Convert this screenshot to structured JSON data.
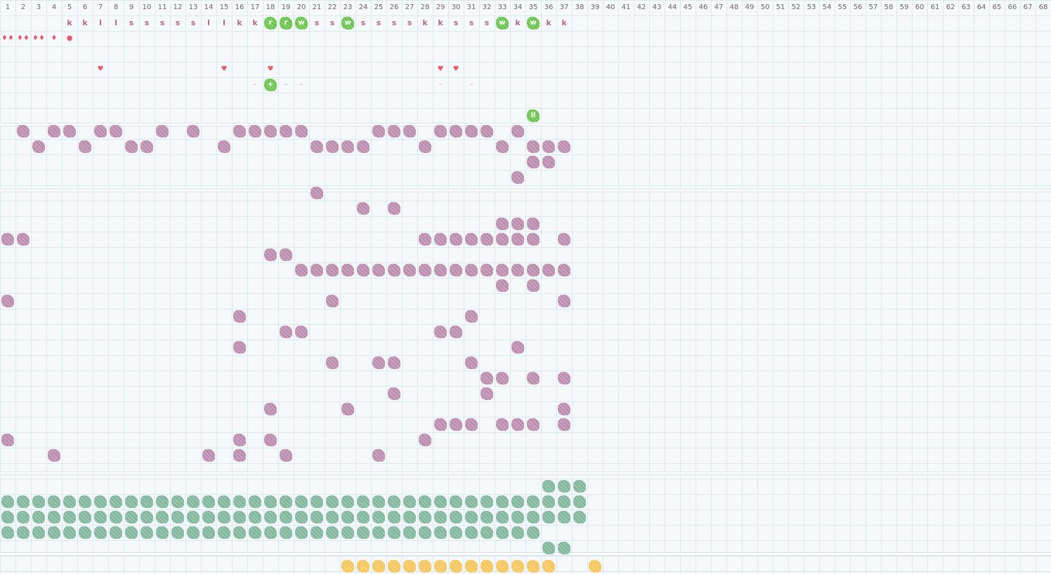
{
  "colors": {
    "grid_line": "#dbe8ee",
    "background": "#f5f9fb",
    "header_text": "#666666",
    "letter_text": "#b06a8e",
    "green_marker": "#66c24a",
    "purple": "#b98aac",
    "teal": "#7fb59a",
    "orange": "#f5c55a",
    "red": "#e35d6a",
    "dash": "#ef9a7a"
  },
  "columns": [
    "1",
    "2",
    "3",
    "4",
    "5",
    "6",
    "7",
    "8",
    "9",
    "10",
    "11",
    "12",
    "13",
    "14",
    "15",
    "16",
    "17",
    "18",
    "19",
    "20",
    "21",
    "22",
    "23",
    "24",
    "25",
    "26",
    "27",
    "28",
    "29",
    "30",
    "31",
    "32",
    "33",
    "34",
    "35",
    "36",
    "37",
    "38",
    "39",
    "40",
    "41",
    "42",
    "43",
    "44",
    "45",
    "46",
    "47",
    "48",
    "49",
    "50",
    "51",
    "52",
    "53",
    "54",
    "55",
    "56",
    "57",
    "58",
    "59",
    "60",
    "61",
    "62",
    "63",
    "64",
    "65",
    "66",
    "67",
    "68"
  ],
  "tracks": {
    "letters": [
      {
        "c": 5,
        "t": "k"
      },
      {
        "c": 6,
        "t": "k"
      },
      {
        "c": 7,
        "t": "l"
      },
      {
        "c": 8,
        "t": "l"
      },
      {
        "c": 9,
        "t": "s"
      },
      {
        "c": 10,
        "t": "s"
      },
      {
        "c": 11,
        "t": "s"
      },
      {
        "c": 12,
        "t": "s"
      },
      {
        "c": 13,
        "t": "s"
      },
      {
        "c": 14,
        "t": "l"
      },
      {
        "c": 15,
        "t": "l"
      },
      {
        "c": 16,
        "t": "k"
      },
      {
        "c": 17,
        "t": "k"
      },
      {
        "c": 21,
        "t": "s"
      },
      {
        "c": 22,
        "t": "s"
      },
      {
        "c": 24,
        "t": "s"
      },
      {
        "c": 25,
        "t": "s"
      },
      {
        "c": 26,
        "t": "s"
      },
      {
        "c": 27,
        "t": "s"
      },
      {
        "c": 28,
        "t": "k"
      },
      {
        "c": 29,
        "t": "k"
      },
      {
        "c": 30,
        "t": "s"
      },
      {
        "c": 31,
        "t": "s"
      },
      {
        "c": 32,
        "t": "s"
      },
      {
        "c": 34,
        "t": "k"
      },
      {
        "c": 36,
        "t": "k"
      },
      {
        "c": 37,
        "t": "k"
      }
    ],
    "green_letters": [
      {
        "c": 18,
        "r": 1,
        "t": "r"
      },
      {
        "c": 19,
        "r": 1,
        "t": "r"
      },
      {
        "c": 20,
        "r": 1,
        "t": "w"
      },
      {
        "c": 23,
        "r": 1,
        "t": "w"
      },
      {
        "c": 33,
        "r": 1,
        "t": "w"
      },
      {
        "c": 35,
        "r": 1,
        "t": "w"
      },
      {
        "c": 18,
        "r": 5,
        "t": "+"
      },
      {
        "c": 35,
        "r": 7,
        "t": "ll"
      }
    ],
    "drops": [
      {
        "c": 1,
        "r": 2,
        "t": "♦♦"
      },
      {
        "c": 2,
        "r": 2,
        "t": "♦♦"
      },
      {
        "c": 3,
        "r": 2,
        "t": "♦♦"
      },
      {
        "c": 4,
        "r": 2,
        "t": "♦"
      },
      {
        "c": 5,
        "r": 2,
        "t": "●"
      }
    ],
    "hearts": [
      {
        "c": 7,
        "r": 4,
        "t": "♥"
      },
      {
        "c": 15,
        "r": 4,
        "t": "♥"
      },
      {
        "c": 18,
        "r": 4,
        "t": "♥"
      },
      {
        "c": 29,
        "r": 4,
        "t": "♥"
      },
      {
        "c": 30,
        "r": 4,
        "t": "♥"
      }
    ],
    "dashes": [
      {
        "c": 17,
        "r": 5,
        "t": "–"
      },
      {
        "c": 19,
        "r": 5,
        "t": "–"
      },
      {
        "c": 20,
        "r": 5,
        "t": "–"
      },
      {
        "c": 29,
        "r": 5,
        "t": "–"
      },
      {
        "c": 31,
        "r": 5,
        "t": "–"
      }
    ]
  },
  "purple_blocks": [
    [
      2,
      8
    ],
    [
      4,
      8
    ],
    [
      5,
      8
    ],
    [
      7,
      8
    ],
    [
      8,
      8
    ],
    [
      11,
      8
    ],
    [
      13,
      8
    ],
    [
      16,
      8
    ],
    [
      17,
      8
    ],
    [
      18,
      8
    ],
    [
      19,
      8
    ],
    [
      20,
      8
    ],
    [
      25,
      8
    ],
    [
      26,
      8
    ],
    [
      27,
      8
    ],
    [
      29,
      8
    ],
    [
      30,
      8
    ],
    [
      31,
      8
    ],
    [
      32,
      8
    ],
    [
      34,
      8
    ],
    [
      3,
      9
    ],
    [
      6,
      9
    ],
    [
      9,
      9
    ],
    [
      10,
      9
    ],
    [
      15,
      9
    ],
    [
      21,
      9
    ],
    [
      22,
      9
    ],
    [
      23,
      9
    ],
    [
      24,
      9
    ],
    [
      28,
      9
    ],
    [
      33,
      9
    ],
    [
      35,
      9
    ],
    [
      36,
      9
    ],
    [
      37,
      9
    ],
    [
      35,
      10
    ],
    [
      36,
      10
    ],
    [
      34,
      11
    ],
    [
      21,
      12
    ],
    [
      24,
      13
    ],
    [
      26,
      13
    ],
    [
      33,
      14
    ],
    [
      34,
      14
    ],
    [
      35,
      14
    ],
    [
      1,
      15
    ],
    [
      2,
      15
    ],
    [
      28,
      15
    ],
    [
      29,
      15
    ],
    [
      30,
      15
    ],
    [
      31,
      15
    ],
    [
      32,
      15
    ],
    [
      33,
      15
    ],
    [
      34,
      15
    ],
    [
      35,
      15
    ],
    [
      37,
      15
    ],
    [
      18,
      16
    ],
    [
      19,
      16
    ],
    [
      20,
      17
    ],
    [
      21,
      17
    ],
    [
      22,
      17
    ],
    [
      23,
      17
    ],
    [
      24,
      17
    ],
    [
      25,
      17
    ],
    [
      26,
      17
    ],
    [
      27,
      17
    ],
    [
      28,
      17
    ],
    [
      29,
      17
    ],
    [
      30,
      17
    ],
    [
      31,
      17
    ],
    [
      32,
      17
    ],
    [
      33,
      17
    ],
    [
      34,
      17
    ],
    [
      35,
      17
    ],
    [
      36,
      17
    ],
    [
      37,
      17
    ],
    [
      33,
      18
    ],
    [
      35,
      18
    ],
    [
      1,
      19
    ],
    [
      22,
      19
    ],
    [
      37,
      19
    ],
    [
      16,
      20
    ],
    [
      31,
      20
    ],
    [
      19,
      21
    ],
    [
      20,
      21
    ],
    [
      29,
      21
    ],
    [
      30,
      21
    ],
    [
      16,
      22
    ],
    [
      34,
      22
    ],
    [
      22,
      23
    ],
    [
      25,
      23
    ],
    [
      26,
      23
    ],
    [
      31,
      23
    ],
    [
      32,
      24
    ],
    [
      33,
      24
    ],
    [
      35,
      24
    ],
    [
      37,
      24
    ],
    [
      26,
      25
    ],
    [
      32,
      25
    ],
    [
      18,
      26
    ],
    [
      23,
      26
    ],
    [
      37,
      26
    ],
    [
      29,
      27
    ],
    [
      30,
      27
    ],
    [
      31,
      27
    ],
    [
      33,
      27
    ],
    [
      34,
      27
    ],
    [
      35,
      27
    ],
    [
      37,
      27
    ],
    [
      1,
      28
    ],
    [
      16,
      28
    ],
    [
      18,
      28
    ],
    [
      28,
      28
    ],
    [
      4,
      29
    ],
    [
      14,
      29
    ],
    [
      16,
      29
    ],
    [
      19,
      29
    ],
    [
      25,
      29
    ]
  ],
  "teal_blocks": {
    "top_row": [
      36,
      37,
      38
    ],
    "full_rows_to_38": [
      32,
      33
    ],
    "row_to_35": 34,
    "bottom_row": [
      36,
      37
    ]
  },
  "orange_blocks": [
    23,
    24,
    25,
    26,
    27,
    28,
    29,
    30,
    31,
    32,
    33,
    34,
    35,
    36,
    39
  ]
}
